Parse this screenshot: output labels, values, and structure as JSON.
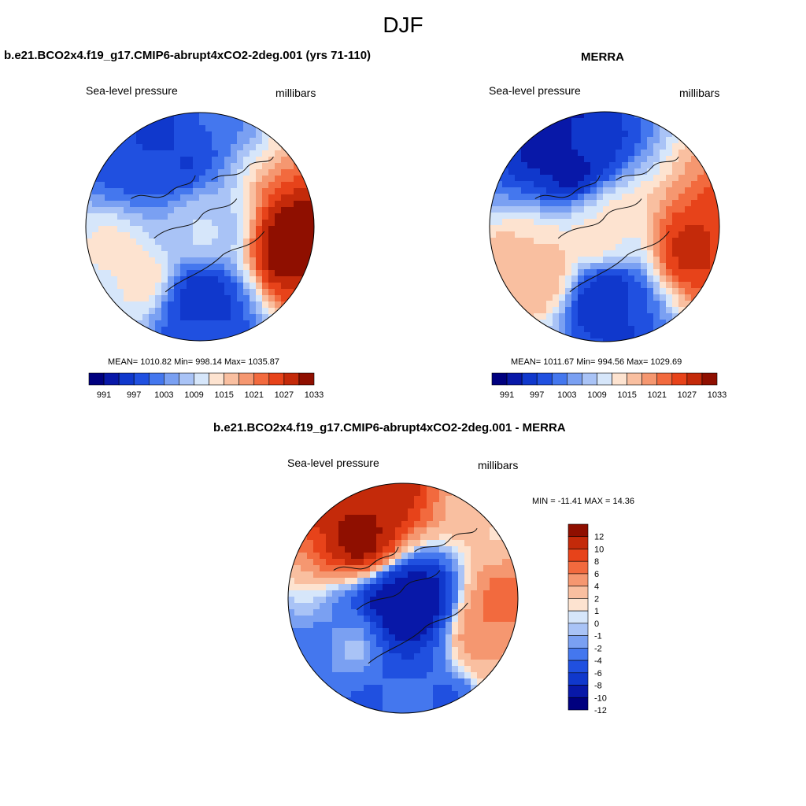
{
  "main_title": "DJF",
  "panels": [
    {
      "id": "model",
      "title": "b.e21.BCO2x4.f19_g17.CMIP6-abrupt4xCO2-2deg.001 (yrs 71-110)",
      "field_label": "Sea-level pressure",
      "units_label": "millibars",
      "stats": "MEAN= 1010.82  Min= 998.14  Max= 1035.87",
      "colorbar_labels": [
        "991",
        "997",
        "1003",
        "1009",
        "1015",
        "1021",
        "1027",
        "1033"
      ]
    },
    {
      "id": "merra",
      "title": "MERRA",
      "field_label": "Sea-level pressure",
      "units_label": "millibars",
      "stats": "MEAN= 1011.67  Min= 994.56  Max= 1029.69",
      "colorbar_labels": [
        "991",
        "997",
        "1003",
        "1009",
        "1015",
        "1021",
        "1027",
        "1033"
      ]
    },
    {
      "id": "difference",
      "title": "b.e21.BCO2x4.f19_g17.CMIP6-abrupt4xCO2-2deg.001 - MERRA",
      "field_label": "Sea-level pressure",
      "units_label": "millibars",
      "stats": "MIN = -11.41 MAX =  14.36",
      "colorbar_labels": [
        "12",
        "10",
        "8",
        "6",
        "4",
        "2",
        "1",
        "0",
        "-1",
        "-2",
        "-4",
        "-6",
        "-8",
        "-10",
        "-12"
      ]
    }
  ],
  "palette": {
    "colors": [
      "#00007f",
      "#0818a8",
      "#1038cc",
      "#2050e0",
      "#4477ee",
      "#7aa0f2",
      "#a9c3f6",
      "#d6e6fa",
      "#fde3d0",
      "#f9bfa0",
      "#f59770",
      "#f26a3e",
      "#e7431a",
      "#c42a0a",
      "#8f0f00"
    ]
  },
  "chart_data": [
    {
      "type": "heatmap",
      "title": "b.e21.BCO2x4.f19_g17.CMIP6-abrupt4xCO2-2deg.001 (yrs 71-110)",
      "variable": "Sea-level pressure",
      "units": "millibars",
      "projection": "north polar stereographic",
      "mean": 1010.82,
      "min": 998.14,
      "max": 1035.87,
      "levels": [
        991,
        994,
        997,
        1000,
        1003,
        1006,
        1009,
        1012,
        1015,
        1018,
        1021,
        1024,
        1027,
        1030,
        1033
      ],
      "centers": [
        {
          "lon": 180,
          "lat": 60,
          "value": 999
        },
        {
          "lon": 330,
          "lat": 55,
          "value": 1000
        },
        {
          "lon": 100,
          "lat": 50,
          "value": 1035
        },
        {
          "lon": 240,
          "lat": 55,
          "value": 1016
        },
        {
          "lon": 0,
          "lat": 90,
          "value": 1011
        }
      ]
    },
    {
      "type": "heatmap",
      "title": "MERRA",
      "variable": "Sea-level pressure",
      "units": "millibars",
      "projection": "north polar stereographic",
      "mean": 1011.67,
      "min": 994.56,
      "max": 1029.69,
      "levels": [
        991,
        994,
        997,
        1000,
        1003,
        1006,
        1009,
        1012,
        1015,
        1018,
        1021,
        1024,
        1027,
        1030,
        1033
      ],
      "centers": [
        {
          "lon": 180,
          "lat": 60,
          "value": 998
        },
        {
          "lon": 330,
          "lat": 55,
          "value": 996
        },
        {
          "lon": 100,
          "lat": 50,
          "value": 1030
        },
        {
          "lon": 240,
          "lat": 55,
          "value": 1020
        },
        {
          "lon": 0,
          "lat": 90,
          "value": 1016
        }
      ]
    },
    {
      "type": "heatmap",
      "title": "b.e21.BCO2x4.f19_g17.CMIP6-abrupt4xCO2-2deg.001 - MERRA",
      "variable": "Sea-level pressure",
      "units": "millibars",
      "projection": "north polar stereographic",
      "min": -11.41,
      "max": 14.36,
      "levels": [
        -12,
        -10,
        -8,
        -6,
        -4,
        -2,
        -1,
        0,
        1,
        2,
        4,
        6,
        8,
        10,
        12
      ],
      "centers": [
        {
          "lon": 0,
          "lat": 90,
          "value": -10
        },
        {
          "lon": 330,
          "lat": 55,
          "value": 12
        },
        {
          "lon": 100,
          "lat": 50,
          "value": 6
        },
        {
          "lon": 180,
          "lat": 50,
          "value": -4
        },
        {
          "lon": 240,
          "lat": 55,
          "value": -2
        }
      ]
    }
  ]
}
